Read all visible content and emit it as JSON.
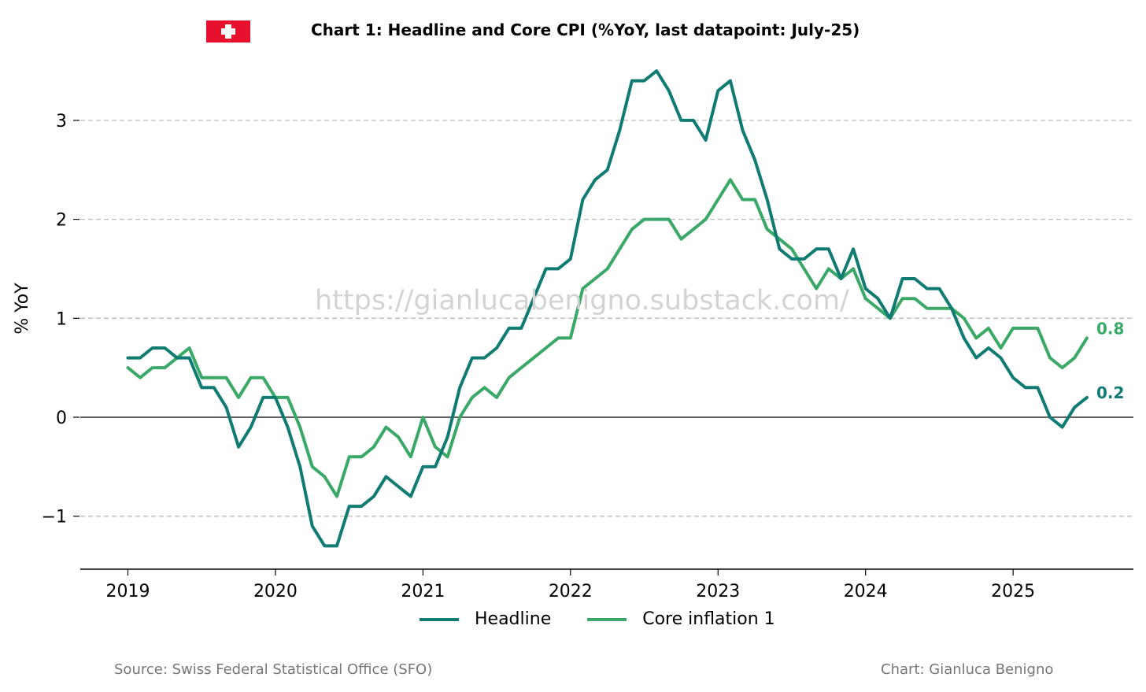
{
  "title": "Chart 1: Headline and Core CPI (%YoY, last datapoint: July-25)",
  "watermark": "https://gianlucabenigno.substack.com/",
  "source": "Source: Swiss Federal Statistical Office (SFO)",
  "credit": "Chart: Gianluca Benigno",
  "flag_icon": "swiss-flag-icon",
  "chart_data": {
    "type": "line",
    "ylabel": "% YoY",
    "xlabel": "",
    "x_start": "2019-01",
    "x_ticks": [
      "2019",
      "2020",
      "2021",
      "2022",
      "2023",
      "2024",
      "2025"
    ],
    "y_ticks": [
      -1,
      0,
      1,
      2,
      3
    ],
    "y_tick_labels": [
      "−1",
      "0",
      "1",
      "2",
      "3"
    ],
    "ylim": [
      -1.5,
      3.5
    ],
    "grid": "horizontal-dashed",
    "legend_position": "bottom-center",
    "series": [
      {
        "name": "Headline",
        "color": "#0f7b72",
        "end_label": "0.2",
        "values": [
          0.6,
          0.6,
          0.7,
          0.7,
          0.6,
          0.6,
          0.3,
          0.3,
          0.1,
          -0.3,
          -0.1,
          0.2,
          0.2,
          -0.1,
          -0.5,
          -1.1,
          -1.3,
          -1.3,
          -0.9,
          -0.9,
          -0.8,
          -0.6,
          -0.7,
          -0.8,
          -0.5,
          -0.5,
          -0.2,
          0.3,
          0.6,
          0.6,
          0.7,
          0.9,
          0.9,
          1.2,
          1.5,
          1.5,
          1.6,
          2.2,
          2.4,
          2.5,
          2.9,
          3.4,
          3.4,
          3.5,
          3.3,
          3.0,
          3.0,
          2.8,
          3.3,
          3.4,
          2.9,
          2.6,
          2.2,
          1.7,
          1.6,
          1.6,
          1.7,
          1.7,
          1.4,
          1.7,
          1.3,
          1.2,
          1.0,
          1.4,
          1.4,
          1.3,
          1.3,
          1.1,
          0.8,
          0.6,
          0.7,
          0.6,
          0.4,
          0.3,
          0.3,
          0.0,
          -0.1,
          0.1,
          0.2
        ]
      },
      {
        "name": "Core inflation 1",
        "color": "#3aa866",
        "end_label": "0.8",
        "values": [
          0.5,
          0.4,
          0.5,
          0.5,
          0.6,
          0.7,
          0.4,
          0.4,
          0.4,
          0.2,
          0.4,
          0.4,
          0.2,
          0.2,
          -0.1,
          -0.5,
          -0.6,
          -0.8,
          -0.4,
          -0.4,
          -0.3,
          -0.1,
          -0.2,
          -0.4,
          0.0,
          -0.3,
          -0.4,
          0.0,
          0.2,
          0.3,
          0.2,
          0.4,
          0.5,
          0.6,
          0.7,
          0.8,
          0.8,
          1.3,
          1.4,
          1.5,
          1.7,
          1.9,
          2.0,
          2.0,
          2.0,
          1.8,
          1.9,
          2.0,
          2.2,
          2.4,
          2.2,
          2.2,
          1.9,
          1.8,
          1.7,
          1.5,
          1.3,
          1.5,
          1.4,
          1.5,
          1.2,
          1.1,
          1.0,
          1.2,
          1.2,
          1.1,
          1.1,
          1.1,
          1.0,
          0.8,
          0.9,
          0.7,
          0.9,
          0.9,
          0.9,
          0.6,
          0.5,
          0.6,
          0.8
        ]
      }
    ]
  }
}
